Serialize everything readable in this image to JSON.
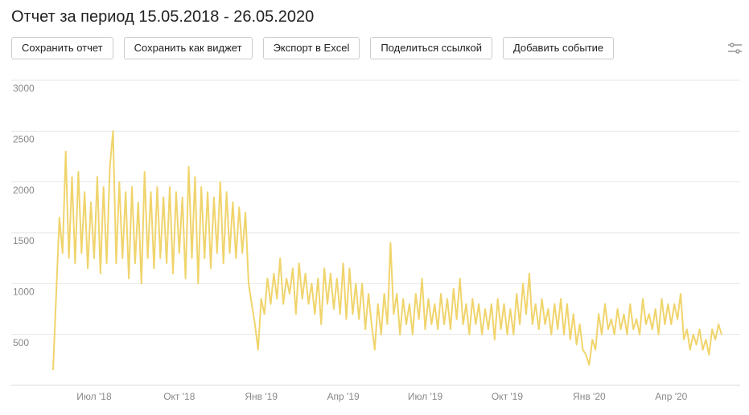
{
  "header": {
    "title": "Отчет за период 15.05.2018 - 26.05.2020"
  },
  "buttons": [
    "Сохранить отчет",
    "Сохранить как виджет",
    "Экспорт в Excel",
    "Поделиться ссылкой",
    "Добавить событие"
  ],
  "chart_data": {
    "type": "line",
    "color": "#f0d46c",
    "grid": true,
    "ylim": [
      0,
      3000
    ],
    "yticks": [
      500,
      1000,
      1500,
      2000,
      2500,
      3000
    ],
    "categories": [
      null,
      null,
      null,
      null,
      null,
      null,
      null,
      null,
      null,
      null,
      null,
      null,
      null,
      "Июл '18",
      null,
      null,
      null,
      null,
      null,
      null,
      null,
      null,
      null,
      null,
      null,
      null,
      null,
      null,
      null,
      null,
      null,
      null,
      null,
      null,
      null,
      null,
      null,
      null,
      null,
      null,
      "Окт '18",
      null,
      null,
      null,
      null,
      null,
      null,
      null,
      null,
      null,
      null,
      null,
      null,
      null,
      null,
      null,
      null,
      null,
      null,
      null,
      null,
      null,
      null,
      null,
      null,
      null,
      "Янв '19",
      null,
      null,
      null,
      null,
      null,
      null,
      null,
      null,
      null,
      null,
      null,
      null,
      null,
      null,
      null,
      null,
      null,
      null,
      null,
      null,
      null,
      null,
      null,
      null,
      null,
      "Апр '19",
      null,
      null,
      null,
      null,
      null,
      null,
      null,
      null,
      null,
      null,
      null,
      null,
      null,
      null,
      null,
      null,
      null,
      null,
      null,
      null,
      null,
      null,
      null,
      null,
      null,
      "Июл '19",
      null,
      null,
      null,
      null,
      null,
      null,
      null,
      null,
      null,
      null,
      null,
      null,
      null,
      null,
      null,
      null,
      null,
      null,
      null,
      null,
      null,
      null,
      null,
      null,
      null,
      "Окт '19",
      null,
      null,
      null,
      null,
      null,
      null,
      null,
      null,
      null,
      null,
      null,
      null,
      null,
      null,
      null,
      null,
      null,
      null,
      null,
      null,
      null,
      null,
      null,
      null,
      null,
      "Янв '20",
      null,
      null,
      null,
      null,
      null,
      null,
      null,
      null,
      null,
      null,
      null,
      null,
      null,
      null,
      null,
      null,
      null,
      null,
      null,
      null,
      null,
      null,
      null,
      null,
      null,
      "Апр '20",
      null,
      null,
      null,
      null,
      null,
      null,
      null,
      null,
      null,
      null,
      null,
      null,
      null,
      null,
      null,
      null
    ],
    "values": [
      150,
      900,
      1650,
      1300,
      2300,
      1250,
      2050,
      1200,
      2100,
      1300,
      1900,
      1150,
      1800,
      1250,
      2050,
      1100,
      1950,
      1200,
      2150,
      2500,
      1200,
      2000,
      1250,
      1900,
      1050,
      1950,
      1200,
      1800,
      1000,
      2100,
      1250,
      1900,
      1150,
      1950,
      1250,
      1850,
      1200,
      1950,
      1100,
      1900,
      1300,
      1850,
      1050,
      2150,
      1250,
      2050,
      1000,
      1950,
      1250,
      1900,
      1150,
      1850,
      1300,
      2000,
      1200,
      1900,
      1300,
      1800,
      1250,
      1750,
      1300,
      1700,
      1000,
      800,
      600,
      350,
      850,
      700,
      1050,
      800,
      1100,
      850,
      1250,
      800,
      1050,
      900,
      1150,
      700,
      1200,
      850,
      1100,
      800,
      1000,
      700,
      1050,
      600,
      1150,
      800,
      1100,
      750,
      1050,
      700,
      1200,
      650,
      1150,
      700,
      1000,
      650,
      1000,
      550,
      900,
      600,
      350,
      800,
      500,
      900,
      600,
      1400,
      700,
      900,
      500,
      850,
      600,
      800,
      500,
      900,
      650,
      1050,
      550,
      850,
      600,
      800,
      550,
      900,
      600,
      850,
      550,
      950,
      650,
      1050,
      600,
      800,
      500,
      850,
      600,
      800,
      500,
      750,
      550,
      800,
      450,
      850,
      550,
      800,
      500,
      750,
      500,
      900,
      600,
      1000,
      700,
      1100,
      600,
      800,
      550,
      850,
      600,
      750,
      500,
      800,
      550,
      850,
      500,
      800,
      450,
      700,
      400,
      600,
      350,
      300,
      200,
      450,
      350,
      700,
      500,
      800,
      550,
      650,
      500,
      750,
      550,
      700,
      500,
      800,
      550,
      650,
      500,
      850,
      600,
      700,
      550,
      750,
      500,
      850,
      600,
      800,
      600,
      800,
      650,
      900,
      450,
      550,
      350,
      500,
      400,
      550,
      350,
      450,
      300,
      550,
      450,
      600,
      500
    ]
  }
}
